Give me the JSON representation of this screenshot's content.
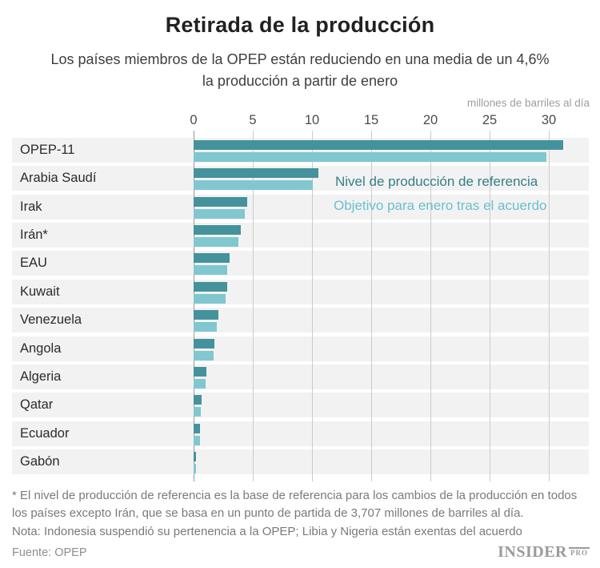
{
  "header": {
    "title": "Retirada de la producción",
    "subtitle_line1": "Los países miembros de la OPEP están reduciendo en una media de un 4,6%",
    "subtitle_line2": "la producción a partir de enero"
  },
  "axis": {
    "unit_label": "millones de barriles al día"
  },
  "legend": {
    "reference_label": "Nivel de producción de referencia",
    "target_label": "Objetivo para enero tras el acuerdo"
  },
  "chart_data": {
    "type": "bar",
    "orientation": "horizontal",
    "title": "Retirada de la producción",
    "xlabel": "millones de barriles al día",
    "xlim": [
      0,
      33.4
    ],
    "x_ticks": [
      0,
      5,
      10,
      15,
      20,
      25,
      30
    ],
    "grid": true,
    "legend_position": "inside-plot-top-right",
    "categories": [
      "OPEP-11",
      "Arabia Saudí",
      "Irak",
      "Irán*",
      "EAU",
      "Kuwait",
      "Venezuela",
      "Angola",
      "Algeria",
      "Qatar",
      "Ecuador",
      "Gabón"
    ],
    "series": [
      {
        "name": "Nivel de producción de referencia",
        "color": "#44929b",
        "values": [
          31.24,
          10.54,
          4.56,
          3.98,
          3.01,
          2.84,
          2.07,
          1.75,
          1.09,
          0.65,
          0.55,
          0.2
        ]
      },
      {
        "name": "Objetivo para enero tras el acuerdo",
        "color": "#80c7d0",
        "values": [
          29.8,
          10.06,
          4.35,
          3.8,
          2.87,
          2.71,
          1.97,
          1.67,
          1.04,
          0.62,
          0.52,
          0.19
        ]
      }
    ]
  },
  "footnotes": {
    "line1": "* El nivel de producción de referencia es la base de referencia para los cambios de la producción en todos",
    "line2": "los países excepto Irán, que se basa en un punto de partida de 3,707 millones de barriles al día.",
    "line3": "Nota: Indonesia suspendió su pertenencia a la OPEP; Libia y Nigeria están exentas del acuerdo"
  },
  "footer": {
    "source": "Fuente: OPEP",
    "logo_main": "INSIDER",
    "logo_sub": "PRO"
  },
  "colors": {
    "reference_bar": "#44929b",
    "target_bar": "#80c7d0",
    "row_band": "#f2f2f2",
    "gridline": "#cbcbcb",
    "zero_line": "#999999",
    "legend_reference_text": "#337f8b",
    "legend_target_text": "#69c0cd"
  }
}
